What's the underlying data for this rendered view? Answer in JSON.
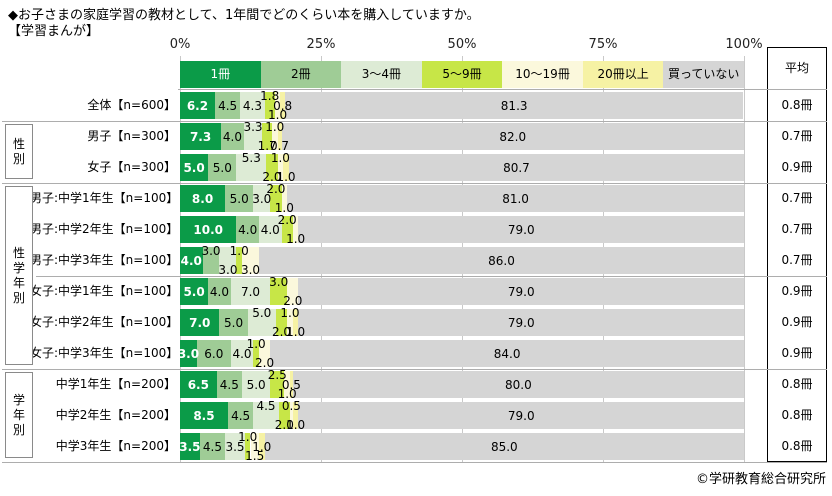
{
  "title": "◆お子さまの家庭学習の教材として、1年間でどのくらい本を購入していますか。",
  "subtitle": "【学習まんが】",
  "axis": {
    "ticks": [
      "0%",
      "25%",
      "50%",
      "75%",
      "100%"
    ]
  },
  "average": {
    "header": "平均"
  },
  "footer": {
    "copyright": "©学研教育総合研究所"
  },
  "colors": {
    "gridline": "#c9c9c9",
    "group_line": "#adadad",
    "not_buying_gray": "#d5d5d5"
  },
  "chart_data": {
    "type": "bar",
    "orientation": "horizontal-stacked",
    "unit": "%",
    "xlim": [
      0,
      100
    ],
    "grid": true,
    "legend_position": "top",
    "categories": [
      "全体【n=600】",
      "男子【n=300】",
      "女子【n=300】",
      "男子:中学1年生【n=100】",
      "男子:中学2年生【n=100】",
      "男子:中学3年生【n=100】",
      "女子:中学1年生【n=100】",
      "女子:中学2年生【n=100】",
      "女子:中学3年生【n=100】",
      "中学1年生【n=200】",
      "中学2年生【n=200】",
      "中学3年生【n=200】"
    ],
    "series": [
      {
        "name": "1冊",
        "color": "#0b9b48",
        "label_color": "#ffffff",
        "values": [
          6.2,
          7.3,
          5.0,
          8.0,
          10.0,
          4.0,
          5.0,
          7.0,
          3.0,
          6.5,
          8.5,
          3.5
        ]
      },
      {
        "name": "2冊",
        "color": "#9fcc96",
        "label_color": "#000000",
        "values": [
          4.5,
          4.0,
          5.0,
          5.0,
          4.0,
          3.0,
          4.0,
          5.0,
          6.0,
          4.5,
          4.5,
          4.5
        ]
      },
      {
        "name": "3～4冊",
        "color": "#ddebd5",
        "label_color": "#000000",
        "values": [
          4.3,
          3.3,
          5.3,
          3.0,
          4.0,
          3.0,
          7.0,
          5.0,
          4.0,
          5.0,
          4.5,
          3.5
        ]
      },
      {
        "name": "5～9冊",
        "color": "#c7e647",
        "label_color": "#000000",
        "values": [
          1.8,
          1.7,
          2.0,
          2.0,
          2.0,
          1.0,
          3.0,
          2.0,
          1.0,
          2.5,
          2.0,
          1.0
        ]
      },
      {
        "name": "10～19冊",
        "color": "#fbf8dc",
        "label_color": "#000000",
        "values": [
          1.0,
          1.0,
          1.0,
          1.0,
          1.0,
          3.0,
          2.0,
          1.0,
          2.0,
          1.0,
          0.5,
          1.5
        ]
      },
      {
        "name": "20冊以上",
        "color": "#f6f2a4",
        "label_color": "#000000",
        "values": [
          0.8,
          0.7,
          1.0,
          0,
          0,
          0,
          0,
          1.0,
          0,
          0.5,
          1.0,
          1.0
        ]
      },
      {
        "name": "買っていない",
        "color": "#d5d5d5",
        "label_color": "#000000",
        "values": [
          81.3,
          82.0,
          80.7,
          81.0,
          79.0,
          86.0,
          79.0,
          79.0,
          84.0,
          80.0,
          79.0,
          85.0
        ]
      }
    ],
    "label_positions": [
      [
        "in",
        "in",
        "in",
        "top",
        "bot",
        "mid",
        "mid"
      ],
      [
        "in",
        "in",
        "top",
        "bot",
        "top",
        "bot",
        "mid"
      ],
      [
        "in",
        "in",
        "top",
        "bot",
        "top",
        "bot",
        "mid"
      ],
      [
        "in",
        "in",
        "in",
        "top",
        "bot",
        "none",
        "mid"
      ],
      [
        "in",
        "in",
        "in",
        "top",
        "bot",
        "none",
        "mid"
      ],
      [
        "in",
        "top",
        "bot",
        "top",
        "bot",
        "none",
        "mid"
      ],
      [
        "in",
        "in",
        "in",
        "top",
        "bot",
        "none",
        "mid"
      ],
      [
        "in",
        "in",
        "top",
        "bot",
        "top",
        "bot",
        "mid"
      ],
      [
        "in",
        "in",
        "in",
        "top",
        "bot",
        "none",
        "mid"
      ],
      [
        "in",
        "in",
        "in",
        "top",
        "bot",
        "mid",
        "mid"
      ],
      [
        "in",
        "in",
        "top",
        "bot",
        "top",
        "bot",
        "mid"
      ],
      [
        "in",
        "in",
        "in",
        "top",
        "bot",
        "mid",
        "mid"
      ]
    ],
    "averages": [
      "0.8冊",
      "0.7冊",
      "0.9冊",
      "0.7冊",
      "0.7冊",
      "0.7冊",
      "0.9冊",
      "0.9冊",
      "0.9冊",
      "0.8冊",
      "0.8冊",
      "0.8冊"
    ],
    "groups": [
      {
        "label": "",
        "start": 0,
        "count": 1
      },
      {
        "label": "性別",
        "start": 1,
        "count": 2
      },
      {
        "label": "性学年別",
        "start": 3,
        "count": 6
      },
      {
        "label": "学年別",
        "start": 9,
        "count": 3
      }
    ],
    "sub_separators": [
      6
    ]
  }
}
